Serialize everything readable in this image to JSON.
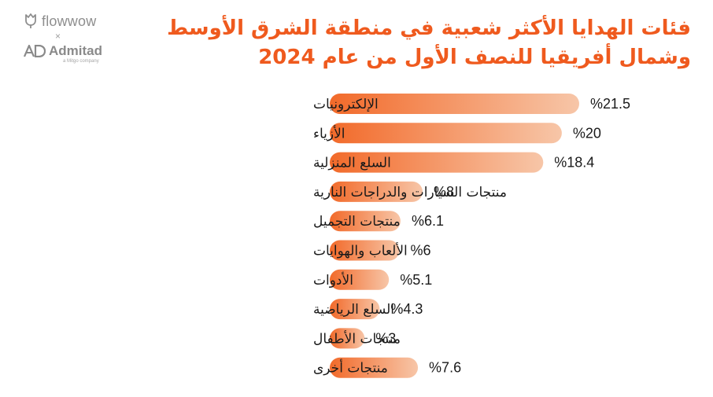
{
  "header": {
    "title_line1": "فئات الهدايا الأكثر شعبية في منطقة الشرق الأوسط",
    "title_line2": "وشمال أفريقيا للنصف الأول من عام 2024"
  },
  "logos": {
    "flowwow": "flowwow",
    "separator": "×",
    "admitad": "Admitad",
    "admitad_sub": "a Mitgo company"
  },
  "colors": {
    "title": "#ef5a1e",
    "bar_start": "#f26a2a",
    "bar_end": "#f7c6a8",
    "text": "#1a1a1a",
    "logo": "#8a8a8a"
  },
  "chart_data": {
    "type": "bar",
    "orientation": "horizontal",
    "title": "فئات الهدايا الأكثر شعبية في منطقة الشرق الأوسط وشمال أفريقيا للنصف الأول من عام 2024",
    "categories": [
      "الإلكترونيات",
      "الأزياء",
      "السلع المنزلية",
      "منتجات السيارات والدراجات النارية",
      "منتجات التجميل",
      "الألعاب والهوايات",
      "الأدوات",
      "السلع الرياضية",
      "منتجات الأطفال",
      "منتجات أخرى"
    ],
    "values": [
      21.5,
      20,
      18.4,
      8,
      6.1,
      6,
      5.1,
      4.3,
      3,
      7.6
    ],
    "value_labels": [
      "%21.5",
      "%20",
      "%18.4",
      "%8",
      "%6.1",
      "%6",
      "%5.1",
      "%4.3",
      "%3",
      "%7.6"
    ],
    "unit": "%",
    "xlabel": "",
    "ylabel": "",
    "xlim": [
      0,
      21.5
    ],
    "grid": false,
    "legend": "none"
  }
}
